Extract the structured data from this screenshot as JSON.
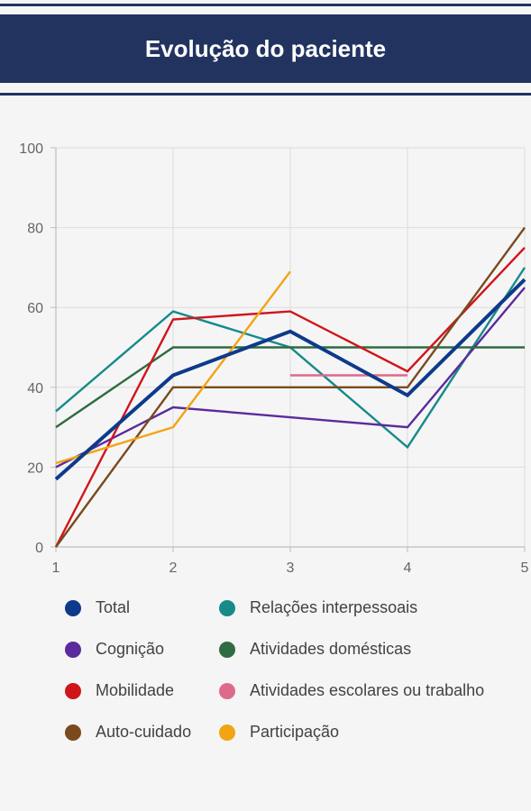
{
  "header": {
    "title": "Evolução do paciente"
  },
  "chart_data": {
    "type": "line",
    "title": "Evolução do paciente",
    "xlabel": "",
    "ylabel": "",
    "x": [
      1,
      2,
      3,
      4,
      5
    ],
    "xlim": [
      1,
      5
    ],
    "ylim": [
      0,
      100
    ],
    "y_ticks": [
      0,
      20,
      40,
      60,
      80,
      100
    ],
    "x_ticks": [
      1,
      2,
      3,
      4,
      5
    ],
    "grid": true,
    "legend_position": "bottom",
    "series": [
      {
        "name": "Total",
        "color": "#0d3a8a",
        "values": [
          17,
          43,
          54,
          38,
          67
        ],
        "bold": true
      },
      {
        "name": "Relações interpessoais",
        "color": "#178a8a",
        "values": [
          34,
          59,
          50,
          25,
          70
        ]
      },
      {
        "name": "Cognição",
        "color": "#5b2a9c",
        "x": [
          1,
          2,
          4,
          5
        ],
        "values": [
          20,
          35,
          30,
          65
        ]
      },
      {
        "name": "Atividades domésticas",
        "color": "#2f6b43",
        "values": [
          30,
          50,
          50,
          50,
          50
        ]
      },
      {
        "name": "Mobilidade",
        "color": "#d0151a",
        "values": [
          0,
          57,
          59,
          44,
          75
        ]
      },
      {
        "name": "Atividades escolares ou trabalho",
        "color": "#dd6a8a",
        "x": [
          3,
          4
        ],
        "values": [
          43,
          43
        ]
      },
      {
        "name": "Auto-cuidado",
        "color": "#7a4a1e",
        "values": [
          0,
          40,
          40,
          40,
          80
        ]
      },
      {
        "name": "Participação",
        "color": "#f2a413",
        "x": [
          1,
          2,
          3
        ],
        "values": [
          21,
          30,
          69
        ]
      }
    ]
  },
  "legend_layout": [
    {
      "series_index": 0,
      "col": 0,
      "row": 0
    },
    {
      "series_index": 1,
      "col": 1,
      "row": 0
    },
    {
      "series_index": 2,
      "col": 0,
      "row": 1
    },
    {
      "series_index": 3,
      "col": 1,
      "row": 1
    },
    {
      "series_index": 4,
      "col": 0,
      "row": 2
    },
    {
      "series_index": 5,
      "col": 1,
      "row": 2
    },
    {
      "series_index": 6,
      "col": 0,
      "row": 3
    },
    {
      "series_index": 7,
      "col": 1,
      "row": 3
    }
  ]
}
